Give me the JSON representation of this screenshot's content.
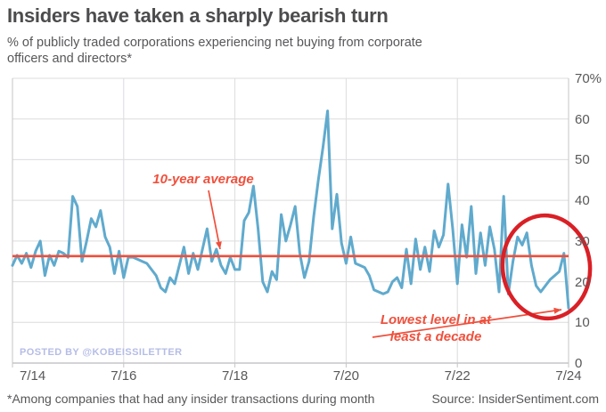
{
  "title": "Insiders have taken a sharply bearish turn",
  "subtitle_line1": "% of publicly traded corporations experiencing net buying from corporate",
  "subtitle_line2": "officers and directors*",
  "watermark": "POSTED BY @KOBEISSILETTER",
  "footnote": "*Among companies that had any insider transactions during month",
  "source": "Source: InsiderSentiment.com",
  "annotations": {
    "average_label": "10-year average",
    "lowest_line1": "Lowest level in at",
    "lowest_line2": "least a decade"
  },
  "colors": {
    "line": "#60aacd",
    "average": "#f04e3b",
    "annotation_text": "#f0503c",
    "circle": "#d92026",
    "grid": "#dcdcde",
    "axis": "#c6c6c8",
    "text": "#58585a",
    "title": "#4c4c4e",
    "watermark": "#b5bde6"
  },
  "chart_data": {
    "type": "line",
    "title": "Insiders have taken a sharply bearish turn",
    "ylabel": "% of publicly traded corporations experiencing net buying from corporate officers and directors",
    "x_unit": "month",
    "x_start_label": "7/14",
    "x_end_label": "7/24",
    "x_tick_labels": [
      "7/14",
      "7/16",
      "7/18",
      "7/20",
      "7/22",
      "7/24"
    ],
    "x_tick_month_indices": [
      0,
      24,
      48,
      72,
      96,
      120
    ],
    "y_tick_labels": [
      "0",
      "10",
      "20",
      "30",
      "40",
      "50",
      "60",
      "70%"
    ],
    "ylim": [
      0,
      70
    ],
    "grid": true,
    "y_axis_side": "right",
    "average_value": 26.3,
    "final_value": 13.5,
    "peak_value": 62,
    "values": [
      24,
      26.5,
      24.5,
      27,
      23.5,
      27.5,
      30,
      21.5,
      26.5,
      24,
      27.5,
      27,
      26,
      41,
      38.5,
      25,
      30,
      35.5,
      33.5,
      37.5,
      31,
      28.5,
      22,
      27.5,
      21,
      26,
      26,
      25.5,
      25,
      24.5,
      23,
      21.5,
      18.5,
      17.5,
      21,
      19.5,
      24,
      28.5,
      22,
      27,
      23,
      28,
      33,
      25,
      28,
      24,
      22,
      26,
      23,
      23,
      35,
      37,
      43.5,
      33,
      20,
      17.5,
      22.5,
      20.5,
      36.5,
      30,
      34,
      38.5,
      27,
      21,
      25,
      36,
      45,
      53,
      62,
      33,
      41.5,
      29.5,
      24.5,
      31,
      24.5,
      24,
      23.5,
      21.5,
      18,
      17.5,
      17,
      17.5,
      20,
      21,
      18.5,
      28,
      19.5,
      30.5,
      23,
      28.5,
      22.5,
      32.5,
      28.5,
      31.5,
      44,
      33,
      19.5,
      34,
      26,
      38.5,
      22,
      32,
      24,
      33.5,
      28,
      17.5,
      41,
      17,
      25,
      31,
      29,
      32,
      24,
      19,
      17.5,
      19,
      20.5,
      21.5,
      22.5,
      27,
      13.5
    ]
  }
}
